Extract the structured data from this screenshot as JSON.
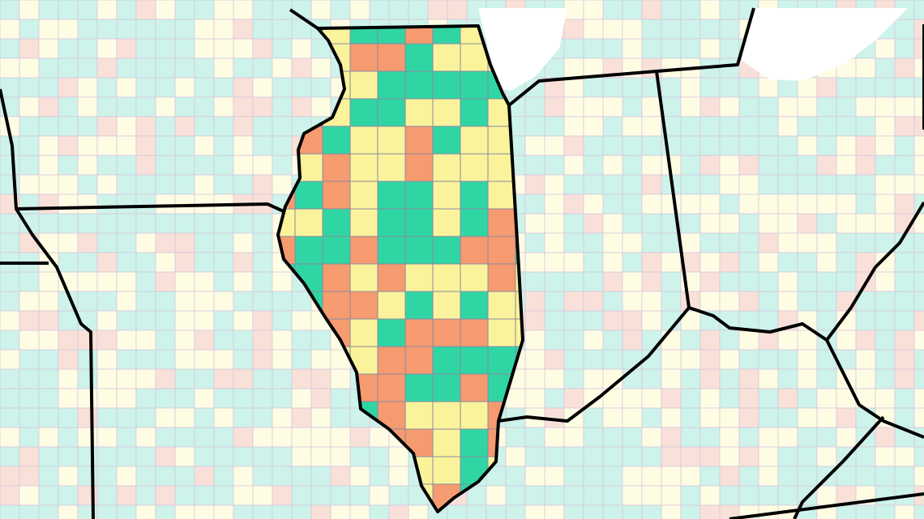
{
  "map": {
    "level_colors": [
      "#2fd6a4",
      "#faf39b",
      "#f59b6f"
    ],
    "faded_colors": [
      "#cdf3ea",
      "#fffce4",
      "#f9e1d9"
    ]
  }
}
